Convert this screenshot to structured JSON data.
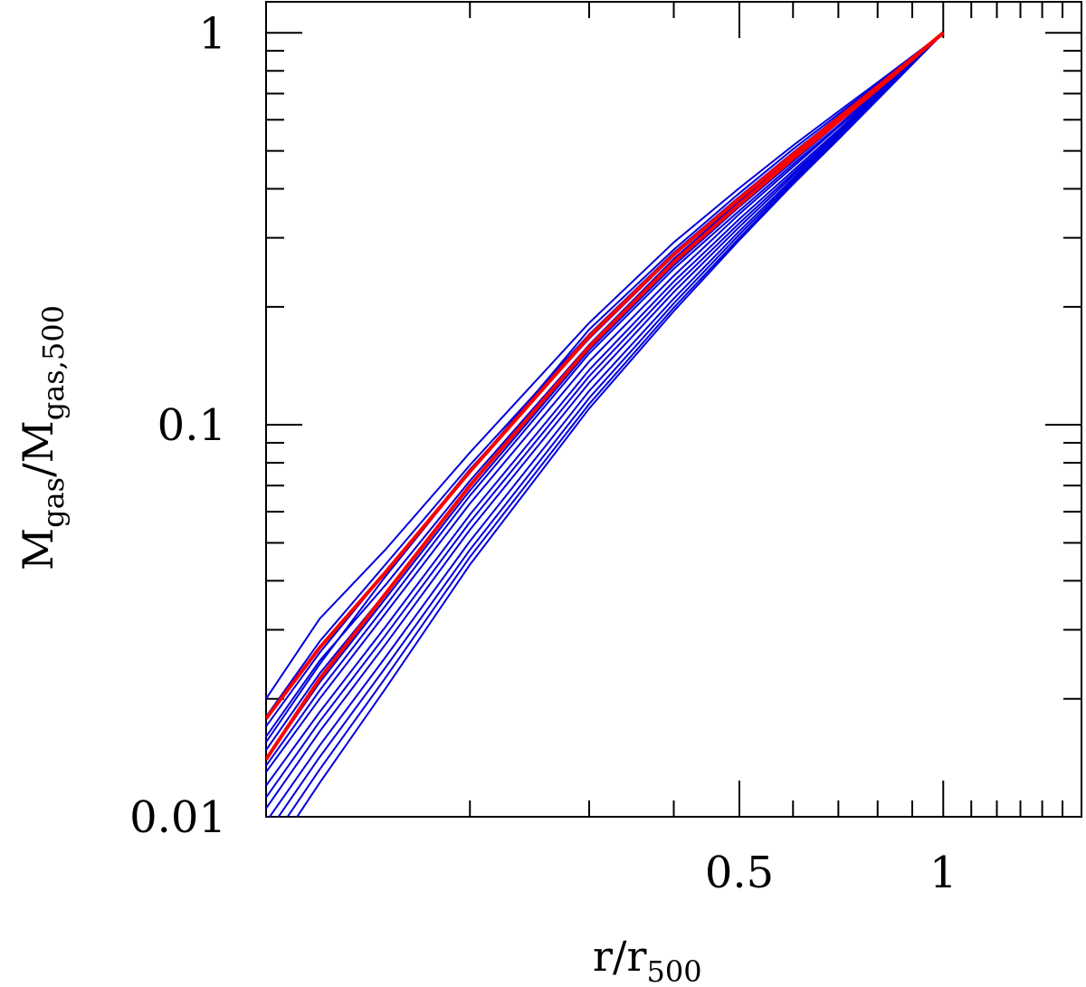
{
  "chart_data": {
    "type": "line",
    "title": "",
    "xlabel": {
      "main": "r/r",
      "sub": "500"
    },
    "ylabel": {
      "main1": "M",
      "sub1": "gas",
      "mid": "/M",
      "sub2": "gas,500"
    },
    "x_scale": "log",
    "y_scale": "log",
    "xlim": [
      0.1,
      1.6
    ],
    "ylim": [
      0.01,
      1.2
    ],
    "x_ticks": [
      {
        "value": 0.5,
        "label": "0.5"
      },
      {
        "value": 1,
        "label": "1"
      }
    ],
    "y_ticks": [
      {
        "value": 0.01,
        "label": "0.01"
      },
      {
        "value": 0.1,
        "label": "0.1"
      },
      {
        "value": 1,
        "label": "1"
      }
    ],
    "grid": false,
    "legend": "none",
    "colors": {
      "individual": "#0000dd",
      "mean": "#ff0000"
    },
    "x": [
      0.1,
      0.12,
      0.15,
      0.2,
      0.3,
      0.4,
      0.5,
      0.6,
      0.7,
      0.8,
      1.0
    ],
    "series": [
      {
        "color": "individual",
        "values": [
          0.0155,
          0.0245,
          0.041,
          0.076,
          0.175,
          0.28,
          0.39,
          0.505,
          0.62,
          0.74,
          1.0
        ]
      },
      {
        "color": "individual",
        "values": [
          0.014,
          0.022,
          0.036,
          0.068,
          0.155,
          0.255,
          0.36,
          0.47,
          0.59,
          0.715,
          1.0
        ]
      },
      {
        "color": "individual",
        "values": [
          0.013,
          0.02,
          0.033,
          0.063,
          0.145,
          0.24,
          0.345,
          0.455,
          0.575,
          0.705,
          1.0
        ]
      },
      {
        "color": "individual",
        "values": [
          0.012,
          0.0185,
          0.0305,
          0.059,
          0.138,
          0.232,
          0.335,
          0.445,
          0.565,
          0.7,
          1.0
        ]
      },
      {
        "color": "individual",
        "values": [
          0.0112,
          0.0175,
          0.029,
          0.0565,
          0.133,
          0.225,
          0.327,
          0.438,
          0.558,
          0.695,
          1.0
        ]
      },
      {
        "color": "individual",
        "values": [
          0.0105,
          0.0165,
          0.0275,
          0.054,
          0.128,
          0.218,
          0.32,
          0.432,
          0.552,
          0.69,
          1.0
        ]
      },
      {
        "color": "individual",
        "values": [
          0.0097,
          0.0152,
          0.0255,
          0.0505,
          0.122,
          0.21,
          0.312,
          0.425,
          0.547,
          0.685,
          1.0
        ]
      },
      {
        "color": "individual",
        "values": [
          0.009,
          0.0142,
          0.024,
          0.048,
          0.117,
          0.204,
          0.306,
          0.42,
          0.542,
          0.682,
          1.0
        ]
      },
      {
        "color": "individual",
        "values": [
          0.0083,
          0.0132,
          0.0226,
          0.046,
          0.113,
          0.199,
          0.3,
          0.415,
          0.538,
          0.678,
          1.0
        ]
      },
      {
        "color": "individual",
        "values": [
          0.0076,
          0.0122,
          0.0212,
          0.044,
          0.11,
          0.195,
          0.296,
          0.411,
          0.535,
          0.676,
          1.0
        ]
      },
      {
        "color": "individual",
        "values": [
          0.016,
          0.025,
          0.039,
          0.072,
          0.16,
          0.265,
          0.372,
          0.485,
          0.6,
          0.725,
          1.0
        ]
      },
      {
        "color": "individual",
        "values": [
          0.0148,
          0.0232,
          0.0372,
          0.07,
          0.157,
          0.262,
          0.367,
          0.48,
          0.596,
          0.722,
          1.0
        ]
      },
      {
        "color": "individual",
        "values": [
          0.0135,
          0.021,
          0.0345,
          0.066,
          0.152,
          0.25,
          0.352,
          0.462,
          0.58,
          0.71,
          1.0
        ]
      },
      {
        "color": "individual",
        "values": [
          0.02,
          0.032,
          0.048,
          0.085,
          0.182,
          0.292,
          0.402,
          0.516,
          0.63,
          0.748,
          1.0
        ]
      },
      {
        "color": "individual",
        "values": [
          0.018,
          0.028,
          0.044,
          0.079,
          0.17,
          0.275,
          0.382,
          0.495,
          0.612,
          0.735,
          1.0
        ]
      },
      {
        "color": "individual",
        "values": [
          0.017,
          0.0262,
          0.042,
          0.077,
          0.166,
          0.27,
          0.377,
          0.49,
          0.606,
          0.73,
          1.0
        ]
      },
      {
        "color": "mean",
        "values": [
          0.014,
          0.0225,
          0.037,
          0.07,
          0.158,
          0.26,
          0.365,
          0.478,
          0.595,
          0.72,
          1.0
        ]
      },
      {
        "color": "mean",
        "values": [
          0.0178,
          0.027,
          0.042,
          0.076,
          0.168,
          0.272,
          0.378,
          0.49,
          0.606,
          0.729,
          1.0
        ]
      }
    ]
  }
}
